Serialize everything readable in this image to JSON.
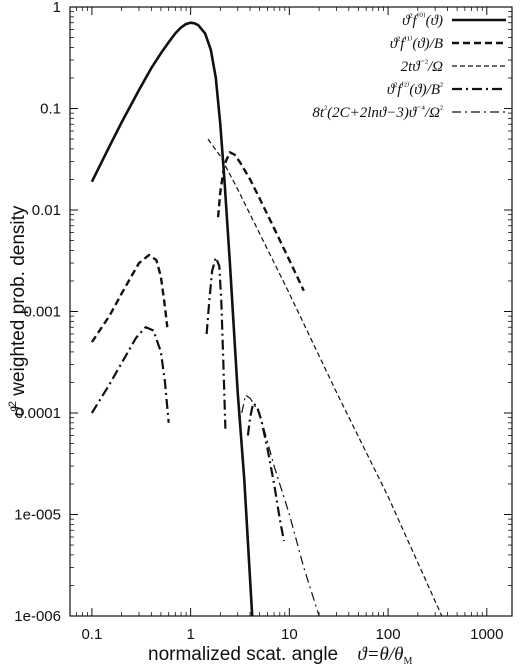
{
  "chart_data": {
    "type": "line",
    "title": "",
    "xlabel": "normalized scat. angle   ϑ=θ/θ_M",
    "ylabel": "ϑ² weighted prob. density",
    "x_scale": "log",
    "y_scale": "log",
    "xlim": [
      0.06,
      1800
    ],
    "ylim": [
      1e-06,
      1
    ],
    "x_ticks": [
      0.1,
      1,
      10,
      100,
      1000
    ],
    "x_tick_labels": [
      "0.1",
      "1",
      "10",
      "100",
      "1000"
    ],
    "y_ticks": [
      1e-06,
      1e-05,
      0.0001,
      0.001,
      0.01,
      0.1,
      1
    ],
    "y_tick_labels": [
      "1e-006",
      "1e-005",
      "0.0001",
      "0.001",
      "0.01",
      "0.1",
      "1"
    ],
    "grid": false,
    "legend_position": "top-right",
    "series": [
      {
        "name": "ϑ²f⁽⁰⁾(ϑ)",
        "style": "solid",
        "width": 2.6,
        "segments": [
          [
            [
              0.1,
              0.019
            ],
            [
              0.15,
              0.042
            ],
            [
              0.2,
              0.073
            ],
            [
              0.3,
              0.152
            ],
            [
              0.4,
              0.25
            ],
            [
              0.5,
              0.35
            ],
            [
              0.6,
              0.45
            ],
            [
              0.7,
              0.55
            ],
            [
              0.8,
              0.63
            ],
            [
              0.9,
              0.68
            ],
            [
              1.0,
              0.7
            ],
            [
              1.1,
              0.69
            ],
            [
              1.2,
              0.66
            ],
            [
              1.4,
              0.55
            ],
            [
              1.6,
              0.38
            ],
            [
              1.8,
              0.2
            ],
            [
              2.0,
              0.07
            ],
            [
              2.2,
              0.02
            ],
            [
              2.5,
              0.003
            ],
            [
              3.0,
              0.00016
            ],
            [
              3.5,
              2.2e-05
            ],
            [
              4.2,
              1e-06
            ]
          ]
        ]
      },
      {
        "name": "ϑ²f⁽¹⁾(ϑ)/B",
        "style": "dashed",
        "width": 2.4,
        "segments": [
          [
            [
              0.1,
              0.0005
            ],
            [
              0.15,
              0.0009
            ],
            [
              0.2,
              0.0015
            ],
            [
              0.25,
              0.0022
            ],
            [
              0.3,
              0.003
            ],
            [
              0.38,
              0.0036
            ],
            [
              0.45,
              0.0032
            ],
            [
              0.5,
              0.0022
            ],
            [
              0.55,
              0.0011
            ],
            [
              0.58,
              0.0007
            ]
          ],
          [
            [
              1.9,
              0.0085
            ],
            [
              2.0,
              0.015
            ],
            [
              2.2,
              0.028
            ],
            [
              2.5,
              0.037
            ],
            [
              2.8,
              0.035
            ],
            [
              3.2,
              0.029
            ],
            [
              4.0,
              0.02
            ],
            [
              5.0,
              0.013
            ],
            [
              7.0,
              0.0066
            ],
            [
              10.0,
              0.0032
            ],
            [
              14.0,
              0.0016
            ]
          ]
        ]
      },
      {
        "name": "2tϑ⁻²/Ω",
        "style": "finedash",
        "width": 1.2,
        "segments": [
          [
            [
              1.5,
              0.05
            ],
            [
              2.0,
              0.034
            ],
            [
              3.0,
              0.016
            ],
            [
              10.0,
              0.0015
            ],
            [
              30.0,
              0.00016
            ],
            [
              100.0,
              1.5e-05
            ],
            [
              350.0,
              1e-06
            ]
          ]
        ]
      },
      {
        "name": "ϑ²f⁽²⁾(ϑ)/B²",
        "style": "dashdot",
        "width": 2.2,
        "segments": [
          [
            [
              0.1,
              0.0001
            ],
            [
              0.15,
              0.00019
            ],
            [
              0.2,
              0.00031
            ],
            [
              0.28,
              0.00055
            ],
            [
              0.35,
              0.0007
            ],
            [
              0.42,
              0.00065
            ],
            [
              0.5,
              0.0004
            ],
            [
              0.55,
              0.0002
            ],
            [
              0.6,
              8e-05
            ]
          ],
          [
            [
              1.45,
              0.0006
            ],
            [
              1.55,
              0.0013
            ],
            [
              1.65,
              0.0025
            ],
            [
              1.8,
              0.0034
            ],
            [
              1.95,
              0.0028
            ],
            [
              2.05,
              0.0012
            ],
            [
              2.15,
              0.0003
            ],
            [
              2.25,
              7e-05
            ]
          ],
          [
            [
              3.8,
              6e-05
            ],
            [
              4.0,
              9e-05
            ],
            [
              4.3,
              0.000125
            ],
            [
              4.7,
              0.000115
            ],
            [
              5.2,
              8.5e-05
            ],
            [
              6.0,
              4.5e-05
            ],
            [
              7.0,
              2e-05
            ],
            [
              8.0,
              9e-06
            ],
            [
              8.8,
              5.5e-06
            ]
          ]
        ]
      },
      {
        "name": "8t²(2C+2lnϑ−3)ϑ⁻⁴/Ω²",
        "style": "thindashdot",
        "width": 1.2,
        "segments": [
          [
            [
              3.3,
              0.0001
            ],
            [
              3.6,
              0.00015
            ],
            [
              4.0,
              0.00014
            ],
            [
              5.0,
              0.0001
            ],
            [
              7.0,
              3e-05
            ],
            [
              10.0,
              1e-05
            ],
            [
              14.0,
              3e-06
            ],
            [
              20.0,
              1e-06
            ]
          ]
        ]
      }
    ],
    "legend_entries": [
      [
        "ϑ",
        "²",
        "f",
        "⁽⁰⁾",
        "(ϑ)"
      ],
      [
        "ϑ",
        "²",
        "f",
        "⁽¹⁾",
        "(ϑ)/B"
      ],
      [
        "2tϑ",
        "⁻²",
        "/Ω"
      ],
      [
        "ϑ",
        "²",
        "f",
        "⁽²⁾",
        "(ϑ)/B",
        "²"
      ],
      [
        "8t",
        "²",
        "(2C+2lnϑ−3)ϑ",
        "⁻⁴",
        "/Ω",
        "²"
      ]
    ]
  }
}
